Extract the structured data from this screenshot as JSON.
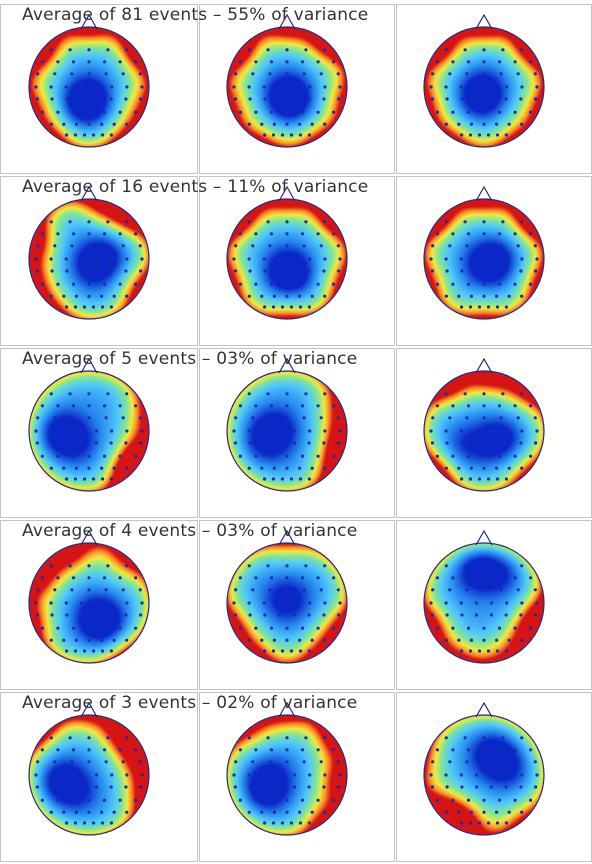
{
  "rows": [
    {
      "title": "Average of 81 events – 55% of variance",
      "maps": [
        {
          "hot": [
            [
              -0.8,
              -0.6,
              1.0
            ],
            [
              0.85,
              -0.6,
              1.0
            ],
            [
              -0.85,
              0.3,
              0.6
            ],
            [
              0.85,
              0.3,
              0.6
            ],
            [
              0,
              -1,
              0.8
            ],
            [
              -0.6,
              0.85,
              0.5
            ],
            [
              0.6,
              0.85,
              0.5
            ]
          ],
          "cold": [
            [
              0,
              0.2,
              1.0
            ],
            [
              -0.1,
              0.3,
              0.6
            ]
          ]
        },
        {
          "hot": [
            [
              -0.8,
              -0.6,
              1.0
            ],
            [
              0.7,
              -0.75,
              1.0
            ],
            [
              -0.85,
              0.3,
              0.6
            ],
            [
              0.9,
              0.2,
              0.6
            ],
            [
              0,
              -1,
              0.8
            ],
            [
              -0.4,
              0.9,
              0.5
            ],
            [
              0.5,
              0.85,
              0.5
            ]
          ],
          "cold": [
            [
              0,
              0.15,
              1.0
            ],
            [
              0.1,
              0.25,
              0.6
            ]
          ]
        },
        {
          "hot": [
            [
              -0.75,
              -0.65,
              1.0
            ],
            [
              0.8,
              -0.65,
              1.0
            ],
            [
              -0.9,
              0.25,
              0.6
            ],
            [
              0.9,
              0.3,
              0.6
            ],
            [
              0,
              -1,
              0.8
            ],
            [
              -0.5,
              0.85,
              0.5
            ],
            [
              0.5,
              0.85,
              0.5
            ]
          ],
          "cold": [
            [
              0,
              0.1,
              0.9
            ],
            [
              -0.1,
              0.2,
              0.5
            ]
          ]
        }
      ]
    },
    {
      "title": "Average of 16 events – 11% of variance",
      "maps": [
        {
          "hot": [
            [
              -0.9,
              -0.3,
              1.0
            ],
            [
              0.7,
              -0.75,
              1.0
            ],
            [
              -0.9,
              0.35,
              0.7
            ],
            [
              0.85,
              0.5,
              0.7
            ],
            [
              -0.6,
              0.85,
              0.5
            ],
            [
              0.2,
              -0.95,
              0.8
            ]
          ],
          "cold": [
            [
              0.1,
              0.1,
              1.0
            ],
            [
              0.3,
              -0.1,
              0.5
            ]
          ]
        },
        {
          "hot": [
            [
              -0.8,
              -0.7,
              1.0
            ],
            [
              0.8,
              -0.7,
              1.0
            ],
            [
              -0.9,
              0.35,
              0.6
            ],
            [
              0.9,
              0.35,
              0.6
            ],
            [
              0,
              -1,
              0.8
            ],
            [
              0,
              0.95,
              0.5
            ]
          ],
          "cold": [
            [
              0,
              0.2,
              1.0
            ],
            [
              0.1,
              0.3,
              0.5
            ]
          ]
        },
        {
          "hot": [
            [
              -0.8,
              -0.7,
              1.0
            ],
            [
              0.8,
              -0.65,
              1.0
            ],
            [
              -0.9,
              0.35,
              0.6
            ],
            [
              0.9,
              0.35,
              0.6
            ],
            [
              0,
              -1,
              0.8
            ],
            [
              0,
              0.95,
              0.5
            ]
          ],
          "cold": [
            [
              0.05,
              0.1,
              1.0
            ],
            [
              0.25,
              0.0,
              0.5
            ]
          ]
        }
      ]
    },
    {
      "title": "Average of 5 events – 03% of variance",
      "maps": [
        {
          "hot": [
            [
              0.85,
              0.45,
              1.0
            ],
            [
              0.7,
              0.75,
              1.0
            ],
            [
              0.9,
              -0.2,
              0.6
            ]
          ],
          "cold": [
            [
              -0.45,
              0.05,
              1.0
            ],
            [
              -0.2,
              0.2,
              0.5
            ]
          ]
        },
        {
          "hot": [
            [
              0.95,
              0.2,
              1.0
            ],
            [
              0.85,
              -0.35,
              0.7
            ],
            [
              0.8,
              0.6,
              0.7
            ]
          ],
          "cold": [
            [
              -0.2,
              0.0,
              1.0
            ],
            [
              -0.4,
              0.2,
              0.5
            ]
          ]
        },
        {
          "hot": [
            [
              -0.6,
              -0.8,
              1.0
            ],
            [
              0.1,
              -0.95,
              1.0
            ],
            [
              0.7,
              -0.7,
              0.8
            ],
            [
              -0.8,
              0.7,
              0.7
            ],
            [
              0.7,
              0.7,
              0.5
            ]
          ],
          "cold": [
            [
              0.25,
              0.15,
              1.0
            ],
            [
              -0.3,
              0.25,
              0.6
            ]
          ]
        }
      ]
    },
    {
      "title": "Average of 4 events – 03% of variance",
      "maps": [
        {
          "hot": [
            [
              -0.8,
              -0.45,
              1.0
            ],
            [
              -0.3,
              -0.85,
              1.0
            ],
            [
              0.6,
              -0.7,
              0.7
            ],
            [
              -0.9,
              0.3,
              0.7
            ],
            [
              0.6,
              0.85,
              0.4
            ]
          ],
          "cold": [
            [
              0.25,
              0.35,
              1.0
            ],
            [
              0.1,
              0.2,
              0.6
            ]
          ]
        },
        {
          "hot": [
            [
              -0.9,
              0.4,
              0.8
            ],
            [
              0.9,
              0.45,
              0.8
            ],
            [
              -0.5,
              0.85,
              0.6
            ],
            [
              0.5,
              0.85,
              0.6
            ],
            [
              0,
              -1,
              0.4
            ]
          ],
          "cold": [
            [
              0,
              -0.05,
              0.9
            ]
          ]
        },
        {
          "hot": [
            [
              -0.9,
              0.4,
              0.9
            ],
            [
              0.8,
              0.55,
              1.0
            ],
            [
              0.95,
              0.2,
              0.8
            ],
            [
              -0.4,
              0.9,
              0.5
            ],
            [
              0.3,
              0.85,
              0.5
            ]
          ],
          "cold": [
            [
              -0.1,
              -0.55,
              1.0
            ],
            [
              0.3,
              -0.5,
              0.6
            ]
          ]
        }
      ]
    },
    {
      "title": "Average of 3 events – 02% of variance",
      "maps": [
        {
          "hot": [
            [
              0.55,
              -0.7,
              1.0
            ],
            [
              0.85,
              -0.3,
              1.0
            ],
            [
              0.9,
              0.3,
              0.8
            ],
            [
              -0.8,
              -0.75,
              0.6
            ],
            [
              0,
              -1,
              0.5
            ]
          ],
          "cold": [
            [
              -0.45,
              0.1,
              1.0
            ],
            [
              -0.2,
              0.3,
              0.5
            ]
          ]
        },
        {
          "hot": [
            [
              0.85,
              0.1,
              1.0
            ],
            [
              0.75,
              -0.6,
              0.8
            ],
            [
              0.6,
              0.75,
              0.7
            ],
            [
              -0.6,
              -0.75,
              0.6
            ],
            [
              0,
              -1,
              0.6
            ]
          ],
          "cold": [
            [
              -0.35,
              0.25,
              1.0
            ],
            [
              -0.25,
              0.0,
              0.5
            ]
          ]
        },
        {
          "hot": [
            [
              -0.7,
              0.6,
              1.0
            ],
            [
              -0.3,
              0.8,
              1.0
            ],
            [
              0.6,
              0.75,
              0.5
            ],
            [
              -0.9,
              -0.2,
              0.4
            ]
          ],
          "cold": [
            [
              0.15,
              -0.35,
              1.0
            ],
            [
              0.4,
              -0.1,
              0.6
            ]
          ]
        }
      ]
    }
  ]
}
